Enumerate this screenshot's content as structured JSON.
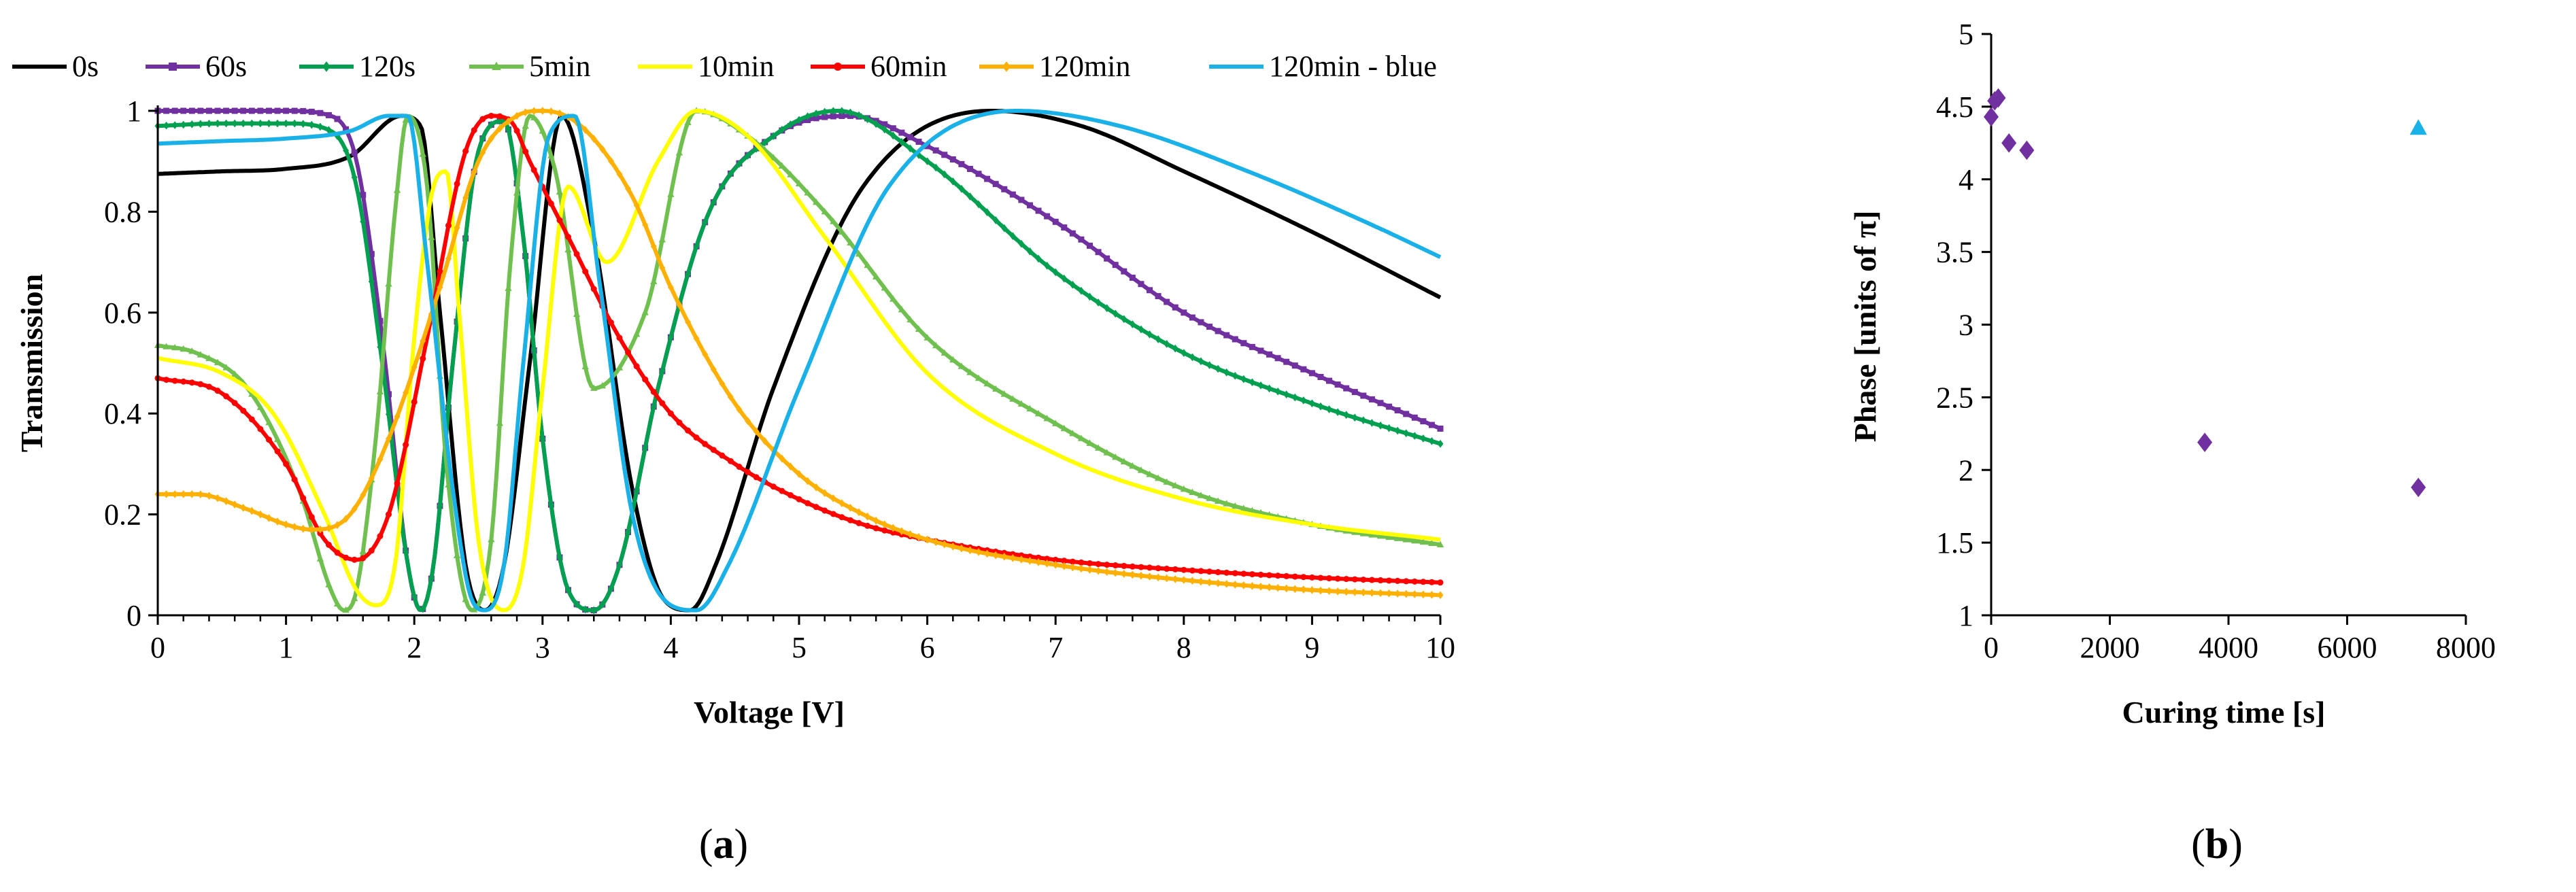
{
  "chart_data": [
    {
      "type": "line",
      "panel_label": "(a)",
      "panel_letter": "a",
      "xlabel": "Voltage [V]",
      "ylabel": "Transmission",
      "xlim": [
        0,
        10
      ],
      "ylim": [
        0,
        1
      ],
      "x_ticks": [
        0,
        1,
        2,
        3,
        4,
        5,
        6,
        7,
        8,
        9,
        10
      ],
      "y_ticks": [
        0,
        0.2,
        0.4,
        0.6,
        0.8,
        1
      ],
      "y_tick_labels": [
        "0",
        "0.2",
        "0.4",
        "0.6",
        "0.8",
        "1"
      ],
      "grid": false,
      "legend_position": "top",
      "series": [
        {
          "name": "0s",
          "color": "#000000",
          "marker": "none",
          "x": [
            0,
            0.5,
            1,
            1.5,
            1.9,
            2.05,
            2.2,
            2.4,
            2.55,
            2.7,
            2.9,
            3.15,
            3.4,
            3.7,
            3.95,
            4.15,
            4.35,
            4.8,
            5.5,
            6.5,
            7.2,
            8,
            9,
            10
          ],
          "y": [
            0.875,
            0.88,
            0.885,
            0.91,
            0.99,
            0.97,
            0.6,
            0.1,
            0.01,
            0.1,
            0.5,
            0.99,
            0.75,
            0.25,
            0.03,
            0.01,
            0.1,
            0.45,
            0.85,
            1.0,
            0.97,
            0.88,
            0.76,
            0.63
          ]
        },
        {
          "name": "60s",
          "color": "#7030a0",
          "marker": "square",
          "x": [
            0,
            1,
            1.35,
            1.55,
            1.75,
            1.95,
            2.05,
            2.15,
            2.3,
            2.5,
            2.7,
            2.85,
            3.0,
            3.2,
            3.4,
            3.6,
            3.9,
            4.3,
            4.8,
            5.4,
            6,
            7,
            8,
            9,
            10
          ],
          "y": [
            1.0,
            1.0,
            0.99,
            0.9,
            0.55,
            0.1,
            0.01,
            0.1,
            0.5,
            0.92,
            0.98,
            0.75,
            0.35,
            0.05,
            0.01,
            0.1,
            0.45,
            0.8,
            0.95,
            0.99,
            0.93,
            0.78,
            0.6,
            0.48,
            0.37
          ]
        },
        {
          "name": "120s",
          "color": "#00a050",
          "marker": "diamond",
          "x": [
            0,
            0.5,
            1,
            1.35,
            1.55,
            1.75,
            1.95,
            2.05,
            2.15,
            2.3,
            2.5,
            2.7,
            2.85,
            3.0,
            3.2,
            3.4,
            3.6,
            3.9,
            4.3,
            4.8,
            5.3,
            6,
            7,
            8,
            9,
            10
          ],
          "y": [
            0.97,
            0.975,
            0.975,
            0.96,
            0.85,
            0.5,
            0.1,
            0.01,
            0.1,
            0.5,
            0.92,
            0.98,
            0.75,
            0.35,
            0.05,
            0.01,
            0.1,
            0.45,
            0.8,
            0.95,
            1.0,
            0.9,
            0.68,
            0.52,
            0.42,
            0.34
          ]
        },
        {
          "name": "5min",
          "color": "#70c050",
          "marker": "triangle",
          "x": [
            0,
            0.3,
            0.7,
            1.1,
            1.35,
            1.45,
            1.55,
            1.7,
            1.85,
            1.95,
            2.1,
            2.25,
            2.45,
            2.6,
            2.75,
            2.9,
            3.1,
            3.4,
            3.8,
            4.2,
            4.6,
            5.2,
            6,
            7,
            8,
            9,
            10
          ],
          "y": [
            0.535,
            0.52,
            0.45,
            0.25,
            0.05,
            0.01,
            0.05,
            0.35,
            0.8,
            0.99,
            0.85,
            0.3,
            0.01,
            0.15,
            0.7,
            0.99,
            0.88,
            0.45,
            0.6,
            1.0,
            0.95,
            0.8,
            0.55,
            0.38,
            0.25,
            0.18,
            0.14
          ]
        },
        {
          "name": "10min",
          "color": "#ffff00",
          "marker": "none",
          "x": [
            0,
            0.5,
            0.9,
            1.3,
            1.55,
            1.7,
            1.85,
            2.0,
            2.15,
            2.25,
            2.35,
            2.5,
            2.7,
            2.85,
            3.0,
            3.2,
            3.5,
            3.9,
            4.2,
            4.6,
            5.2,
            6,
            7,
            8,
            9,
            10
          ],
          "y": [
            0.51,
            0.48,
            0.4,
            0.2,
            0.05,
            0.02,
            0.1,
            0.55,
            0.85,
            0.88,
            0.6,
            0.15,
            0.01,
            0.1,
            0.45,
            0.85,
            0.7,
            0.9,
            1.0,
            0.95,
            0.75,
            0.48,
            0.32,
            0.23,
            0.18,
            0.15
          ]
        },
        {
          "name": "60min",
          "color": "#ff0000",
          "marker": "dot",
          "x": [
            0,
            0.5,
            1,
            1.3,
            1.55,
            1.8,
            2.1,
            2.4,
            2.6,
            2.75,
            2.9,
            3.2,
            3.6,
            4.0,
            4.5,
            5,
            5.5,
            6,
            7,
            8,
            9,
            10
          ],
          "y": [
            0.47,
            0.44,
            0.3,
            0.15,
            0.11,
            0.2,
            0.55,
            0.92,
            0.99,
            0.98,
            0.9,
            0.75,
            0.55,
            0.4,
            0.3,
            0.23,
            0.18,
            0.15,
            0.11,
            0.09,
            0.075,
            0.065
          ]
        },
        {
          "name": "120min",
          "color": "#ffb000",
          "marker": "diamond",
          "x": [
            0,
            0.3,
            0.7,
            1,
            1.2,
            1.5,
            1.8,
            2.2,
            2.5,
            2.8,
            3.0,
            3.3,
            3.7,
            4.0,
            4.5,
            5,
            5.5,
            6,
            7,
            8,
            9,
            10
          ],
          "y": [
            0.24,
            0.24,
            0.21,
            0.18,
            0.17,
            0.2,
            0.35,
            0.65,
            0.9,
            0.99,
            1.0,
            0.97,
            0.83,
            0.65,
            0.42,
            0.28,
            0.2,
            0.15,
            0.1,
            0.07,
            0.05,
            0.04
          ]
        },
        {
          "name": "120min - blue",
          "color": "#1ab0e8",
          "marker": "none",
          "x": [
            0,
            0.5,
            1,
            1.5,
            1.8,
            1.95,
            2.1,
            2.3,
            2.45,
            2.55,
            2.7,
            2.85,
            3.05,
            3.25,
            3.45,
            3.7,
            4.0,
            4.2,
            4.45,
            5,
            5.7,
            6.7,
            7.5,
            8.5,
            9.5,
            10
          ],
          "y": [
            0.935,
            0.94,
            0.945,
            0.96,
            0.99,
            0.99,
            0.7,
            0.25,
            0.03,
            0.01,
            0.1,
            0.5,
            0.95,
            0.99,
            0.65,
            0.2,
            0.02,
            0.01,
            0.1,
            0.45,
            0.85,
            1.0,
            0.97,
            0.88,
            0.77,
            0.71
          ]
        }
      ]
    },
    {
      "type": "scatter",
      "panel_label": "(b)",
      "panel_letter": "b",
      "xlabel": "Curing time [s]",
      "ylabel": "Phase [units of π]",
      "xlim": [
        0,
        8000
      ],
      "ylim": [
        1,
        5
      ],
      "x_ticks": [
        0,
        2000,
        4000,
        6000,
        8000
      ],
      "y_ticks": [
        1,
        1.5,
        2,
        2.5,
        3,
        3.5,
        4,
        4.5,
        5
      ],
      "grid": false,
      "series": [
        {
          "name": "purple",
          "color": "#7030a0",
          "marker": "diamond",
          "x": [
            0,
            60,
            120,
            300,
            600,
            3600,
            7200
          ],
          "y": [
            4.43,
            4.54,
            4.56,
            4.25,
            4.2,
            2.19,
            1.88
          ]
        },
        {
          "name": "blue",
          "color": "#1ab0e8",
          "marker": "triangle",
          "x": [
            7200
          ],
          "y": [
            4.35
          ]
        }
      ]
    }
  ]
}
